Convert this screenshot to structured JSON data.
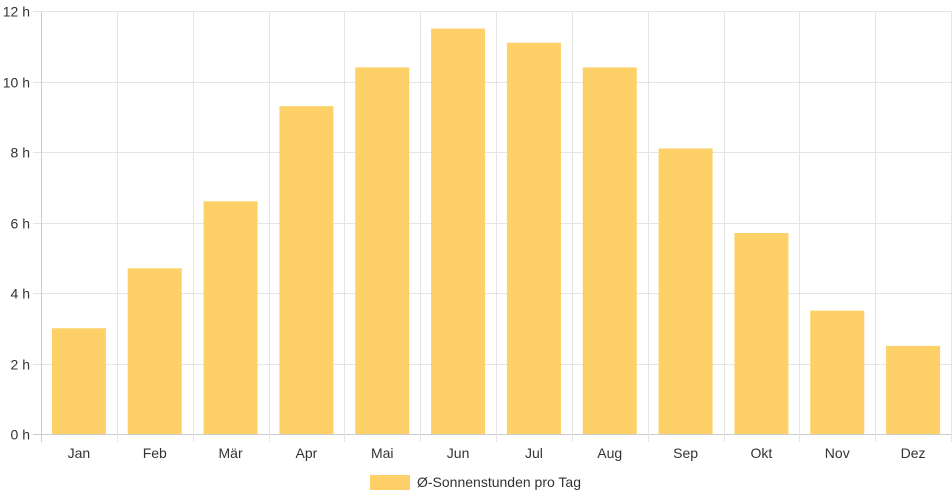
{
  "chart_data": {
    "type": "bar",
    "categories": [
      "Jan",
      "Feb",
      "Mär",
      "Apr",
      "Mai",
      "Jun",
      "Jul",
      "Aug",
      "Sep",
      "Okt",
      "Nov",
      "Dez"
    ],
    "series": [
      {
        "name": "Ø-Sonnenstunden pro Tag",
        "values": [
          3.0,
          4.7,
          6.6,
          9.3,
          10.4,
          11.5,
          11.1,
          10.4,
          8.1,
          5.7,
          3.5,
          2.5
        ]
      }
    ],
    "ylim": [
      0,
      12
    ],
    "yticks": [
      0,
      2,
      4,
      6,
      8,
      10,
      12
    ],
    "ytick_suffix": " h",
    "grid": true,
    "legend_position": "bottom",
    "colors": {
      "bar": "#fdd068",
      "grid": "#e5e5e5",
      "axis": "#cccccc"
    }
  }
}
